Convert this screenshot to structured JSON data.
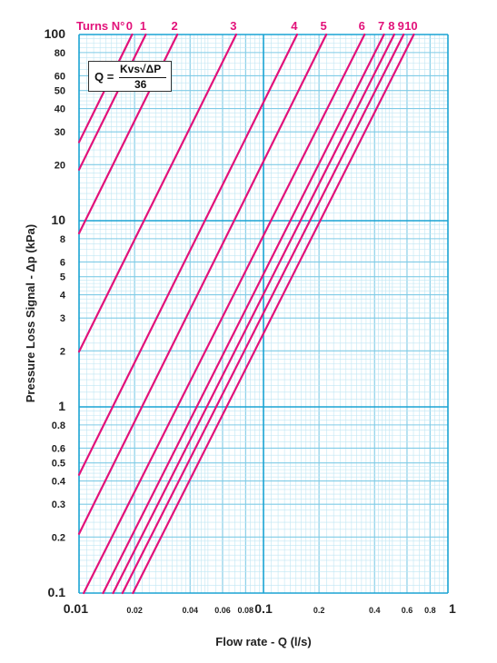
{
  "chart_data": {
    "type": "line",
    "title": "",
    "xlabel": "Flow rate - Q (l/s)",
    "ylabel": "Pressure Loss Signal - Δp (kPa)",
    "x_scale": "log",
    "y_scale": "log",
    "xlim": [
      0.01,
      1
    ],
    "ylim": [
      0.1,
      100
    ],
    "grid": true,
    "legend_title": "Turns N°",
    "formula": {
      "lhs": "Q =",
      "numerator": "Kvs√ΔP",
      "denominator": "36"
    },
    "x_ticks": [
      {
        "value": 0.01,
        "label": "0.01",
        "major": true
      },
      {
        "value": 0.02,
        "label": "0.02",
        "major": false
      },
      {
        "value": 0.04,
        "label": "0.04",
        "major": false
      },
      {
        "value": 0.06,
        "label": "0.06",
        "major": false
      },
      {
        "value": 0.08,
        "label": "0.08",
        "major": false
      },
      {
        "value": 0.1,
        "label": "0.1",
        "major": true
      },
      {
        "value": 0.2,
        "label": "0.2",
        "major": false
      },
      {
        "value": 0.4,
        "label": "0.4",
        "major": false
      },
      {
        "value": 0.6,
        "label": "0.6",
        "major": false
      },
      {
        "value": 0.8,
        "label": "0.8",
        "major": false
      },
      {
        "value": 1,
        "label": "1",
        "major": true
      }
    ],
    "y_ticks": [
      {
        "value": 0.1,
        "label": "0.1",
        "major": true
      },
      {
        "value": 0.2,
        "label": "0.2",
        "major": false
      },
      {
        "value": 0.3,
        "label": "0.3",
        "major": false
      },
      {
        "value": 0.4,
        "label": "0.4",
        "major": false
      },
      {
        "value": 0.5,
        "label": "0.5",
        "major": false
      },
      {
        "value": 0.6,
        "label": "0.6",
        "major": false
      },
      {
        "value": 0.8,
        "label": "0.8",
        "major": false
      },
      {
        "value": 1,
        "label": "1",
        "major": true
      },
      {
        "value": 2,
        "label": "2",
        "major": false
      },
      {
        "value": 3,
        "label": "3",
        "major": false
      },
      {
        "value": 4,
        "label": "4",
        "major": false
      },
      {
        "value": 5,
        "label": "5",
        "major": false
      },
      {
        "value": 6,
        "label": "6",
        "major": false
      },
      {
        "value": 8,
        "label": "8",
        "major": false
      },
      {
        "value": 10,
        "label": "10",
        "major": true
      },
      {
        "value": 20,
        "label": "20",
        "major": false
      },
      {
        "value": 30,
        "label": "30",
        "major": false
      },
      {
        "value": 40,
        "label": "40",
        "major": false
      },
      {
        "value": 50,
        "label": "50",
        "major": false
      },
      {
        "value": 60,
        "label": "60",
        "major": false
      },
      {
        "value": 80,
        "label": "80",
        "major": false
      },
      {
        "value": 100,
        "label": "100",
        "major": true
      }
    ],
    "series": [
      {
        "name": "0",
        "kvs": 0.07,
        "x": [
          0.01,
          0.0194
        ],
        "y": [
          26.4,
          100
        ]
      },
      {
        "name": "1",
        "kvs": 0.083,
        "x": [
          0.01,
          0.023
        ],
        "y": [
          18.8,
          100
        ]
      },
      {
        "name": "2",
        "kvs": 0.123,
        "x": [
          0.01,
          0.0341
        ],
        "y": [
          8.56,
          100
        ]
      },
      {
        "name": "3",
        "kvs": 0.256,
        "x": [
          0.01,
          0.0711
        ],
        "y": [
          1.98,
          100
        ]
      },
      {
        "name": "4",
        "kvs": 0.548,
        "x": [
          0.01,
          0.152
        ],
        "y": [
          0.432,
          100
        ]
      },
      {
        "name": "5",
        "kvs": 0.79,
        "x": [
          0.01,
          0.219
        ],
        "y": [
          0.208,
          100
        ]
      },
      {
        "name": "6",
        "kvs": 1.27,
        "x": [
          0.0106,
          0.353
        ],
        "y": [
          0.1,
          100
        ]
      },
      {
        "name": "7",
        "kvs": 1.62,
        "x": [
          0.0135,
          0.45
        ],
        "y": [
          0.1,
          100
        ]
      },
      {
        "name": "8",
        "kvs": 1.84,
        "x": [
          0.0153,
          0.511
        ],
        "y": [
          0.1,
          100
        ]
      },
      {
        "name": "9",
        "kvs": 2.07,
        "x": [
          0.0172,
          0.575
        ],
        "y": [
          0.1,
          100
        ]
      },
      {
        "name": "10",
        "kvs": 2.35,
        "x": [
          0.0196,
          0.653
        ],
        "y": [
          0.1,
          100
        ]
      }
    ],
    "colors": {
      "curve": "#e2127a",
      "grid_minor": "#bfe6f3",
      "grid_mid": "#7fcbe6",
      "grid_major": "#1aa3d4",
      "background": "#ffffff"
    }
  }
}
